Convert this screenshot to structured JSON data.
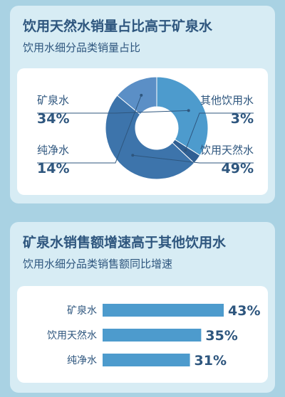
{
  "card1": {
    "title": "饮用天然水销量占比高于矿泉水",
    "subtitle": "饮用水细分品类销量占比"
  },
  "card2": {
    "title": "矿泉水销售额增速高于其他饮用水",
    "subtitle": "饮用水细分品类销售额同比增速"
  },
  "chart_data": [
    {
      "type": "pie",
      "donut": true,
      "categories": [
        "矿泉水",
        "其他饮用水",
        "饮用天然水",
        "纯净水"
      ],
      "values": [
        34,
        3,
        49,
        14
      ],
      "value_labels": [
        "34%",
        "3%",
        "49%",
        "14%"
      ],
      "colors": [
        "#4d9bcd",
        "#2f5f93",
        "#3d74ab",
        "#5b8fc6"
      ],
      "title": "饮用水细分品类销量占比"
    },
    {
      "type": "bar",
      "orientation": "horizontal",
      "categories": [
        "矿泉水",
        "饮用天然水",
        "纯净水"
      ],
      "values": [
        43,
        35,
        31
      ],
      "value_labels": [
        "43%",
        "35%",
        "31%"
      ],
      "colors": [
        "#4d9bcd"
      ],
      "title": "饮用水细分品类销售额同比增速"
    }
  ]
}
